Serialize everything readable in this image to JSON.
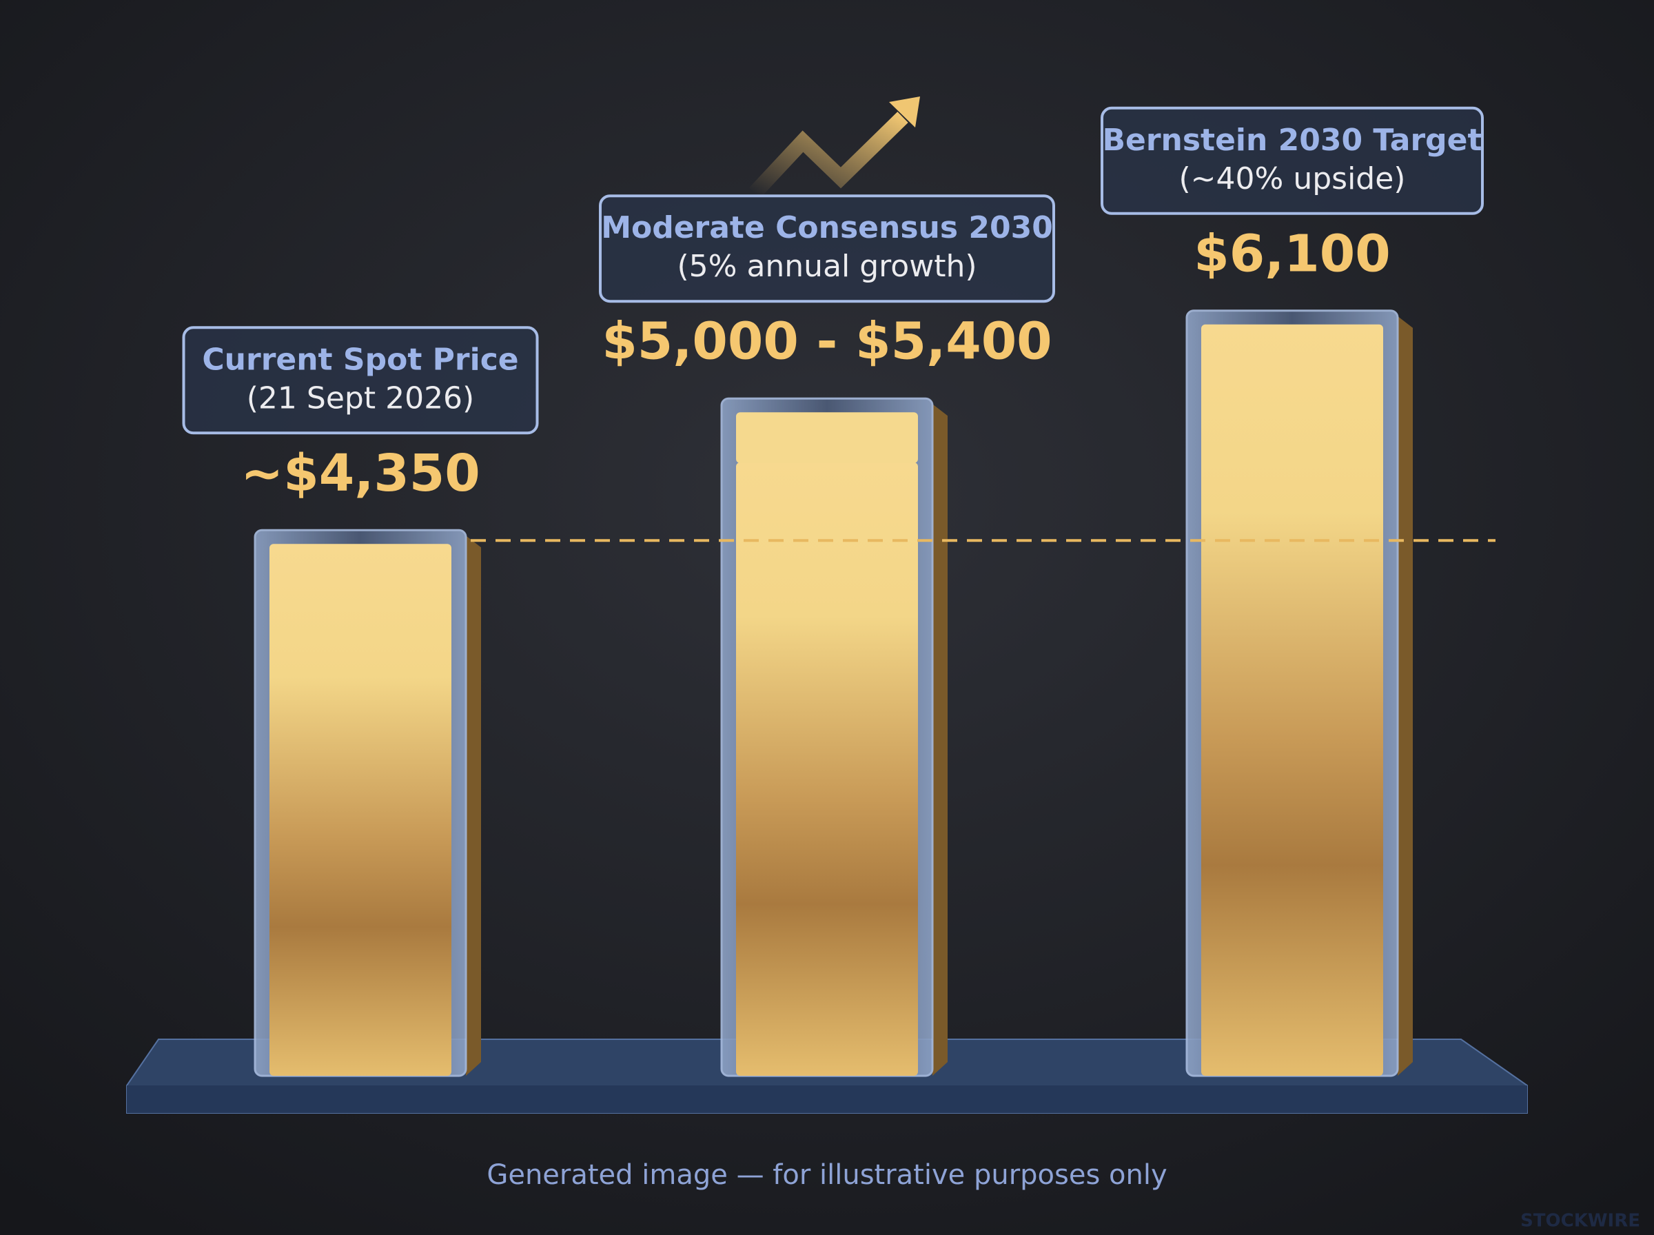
{
  "chart_data": {
    "type": "bar",
    "categories": [
      "Current Spot Price",
      "Moderate Consensus 2030",
      "Bernstein 2030 Target"
    ],
    "subtitles": [
      "(21 Sept 2026)",
      "(5% annual growth)",
      "(~40% upside)"
    ],
    "values": [
      4350,
      5000,
      6100
    ],
    "range_high": [
      null,
      5400,
      null
    ],
    "value_labels": [
      "~$4,350",
      "$5,000 - $5,400",
      "$6,100"
    ],
    "reference_line": true,
    "color": "#e9bd66",
    "footnote": "Generated image — for illustrative purposes only",
    "watermark": "STOCKWIRE"
  }
}
